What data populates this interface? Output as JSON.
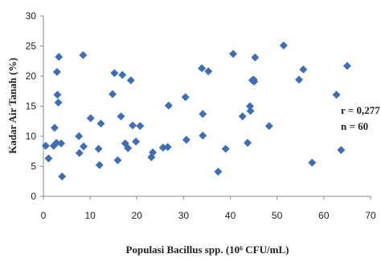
{
  "chart_data": {
    "type": "scatter",
    "xlabel": "Populasi Bacillus spp. (10⁶ CFU/mL)",
    "ylabel": "Kadar Air Tanah (%)",
    "xlim": [
      0,
      70
    ],
    "ylim": [
      0,
      30
    ],
    "x_ticks": [
      0,
      10,
      20,
      30,
      40,
      50,
      60,
      70
    ],
    "y_ticks": [
      0,
      5,
      10,
      15,
      20,
      25,
      30
    ],
    "grid": false,
    "marker": "diamond",
    "marker_color": "#3d6fb6",
    "annotations": [
      "r = 0,277",
      "n = 60"
    ],
    "series": [
      {
        "points": [
          [
            0.5,
            8.4
          ],
          [
            1.1,
            6.3
          ],
          [
            2.2,
            8.4
          ],
          [
            2.4,
            11.4
          ],
          [
            2.8,
            8.9
          ],
          [
            2.9,
            20.7
          ],
          [
            3.0,
            16.9
          ],
          [
            3.2,
            15.6
          ],
          [
            3.3,
            23.2
          ],
          [
            3.8,
            8.8
          ],
          [
            4.0,
            3.3
          ],
          [
            7.6,
            10.0
          ],
          [
            7.7,
            7.2
          ],
          [
            8.5,
            23.5
          ],
          [
            8.6,
            8.3
          ],
          [
            10.1,
            13.0
          ],
          [
            11.8,
            7.9
          ],
          [
            12.0,
            5.2
          ],
          [
            12.3,
            12.1
          ],
          [
            14.8,
            17.0
          ],
          [
            15.2,
            20.5
          ],
          [
            15.9,
            6.0
          ],
          [
            16.6,
            13.3
          ],
          [
            16.9,
            20.2
          ],
          [
            17.5,
            8.8
          ],
          [
            18.1,
            8.0
          ],
          [
            18.7,
            19.3
          ],
          [
            19.1,
            11.8
          ],
          [
            19.8,
            9.1
          ],
          [
            20.7,
            11.7
          ],
          [
            23.1,
            6.5
          ],
          [
            23.4,
            7.3
          ],
          [
            25.6,
            8.1
          ],
          [
            26.6,
            8.2
          ],
          [
            26.8,
            15.1
          ],
          [
            30.4,
            16.5
          ],
          [
            30.6,
            9.4
          ],
          [
            33.9,
            21.3
          ],
          [
            34.1,
            13.7
          ],
          [
            34.1,
            10.1
          ],
          [
            35.3,
            20.8
          ],
          [
            37.4,
            4.1
          ],
          [
            39.0,
            7.9
          ],
          [
            40.6,
            23.7
          ],
          [
            42.6,
            13.3
          ],
          [
            43.7,
            8.9
          ],
          [
            44.2,
            15.0
          ],
          [
            44.3,
            14.2
          ],
          [
            44.7,
            19.3
          ],
          [
            45.0,
            19.4
          ],
          [
            45.3,
            23.1
          ],
          [
            48.3,
            11.7
          ],
          [
            51.4,
            25.1
          ],
          [
            54.7,
            19.4
          ],
          [
            55.6,
            21.1
          ],
          [
            57.5,
            5.6
          ],
          [
            62.7,
            16.9
          ],
          [
            63.7,
            7.7
          ],
          [
            65.0,
            21.7
          ],
          [
            45.1,
            19.1
          ]
        ]
      }
    ]
  }
}
